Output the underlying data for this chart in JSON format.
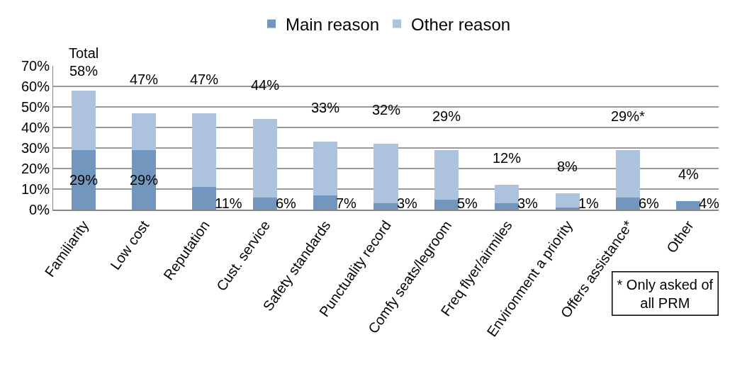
{
  "chart_data": {
    "type": "bar",
    "stacked": true,
    "categories": [
      "Familiarity",
      "Low cost",
      "Reputation",
      "Cust. service",
      "Safety standards",
      "Punctuality record",
      "Comfy seats/legroom",
      "Freq flyer/airmiles",
      "Environment a priority",
      "Offers assistance*",
      "Other"
    ],
    "series": [
      {
        "name": "Main reason",
        "color": "#7396bf",
        "values": [
          29,
          29,
          11,
          6,
          7,
          3,
          5,
          3,
          1,
          6,
          4
        ],
        "value_labels": [
          "29%",
          "29%",
          "11%",
          "6%",
          "7%",
          "3%",
          "5%",
          "3%",
          "1%",
          "6%",
          "4%"
        ]
      },
      {
        "name": "Other reason",
        "color": "#adc2dc",
        "values": [
          29,
          18,
          36,
          38,
          26,
          29,
          24,
          9,
          7,
          23,
          0
        ]
      }
    ],
    "totals": [
      "58%",
      "47%",
      "47%",
      "44%",
      "33%",
      "32%",
      "29%",
      "12%",
      "8%",
      "29%*",
      "4%"
    ],
    "annotations": [
      "Total",
      "* Only asked of all PRM"
    ],
    "ylim": [
      0,
      70
    ],
    "yticks": [
      {
        "value": 0,
        "label": "0%"
      },
      {
        "value": 10,
        "label": "10%"
      },
      {
        "value": 20,
        "label": "20%"
      },
      {
        "value": 30,
        "label": "30%"
      },
      {
        "value": 40,
        "label": "40%"
      },
      {
        "value": 50,
        "label": "50%"
      },
      {
        "value": 60,
        "label": "60%"
      },
      {
        "value": 70,
        "label": "70%"
      }
    ],
    "grid": "y",
    "legend": "top"
  }
}
